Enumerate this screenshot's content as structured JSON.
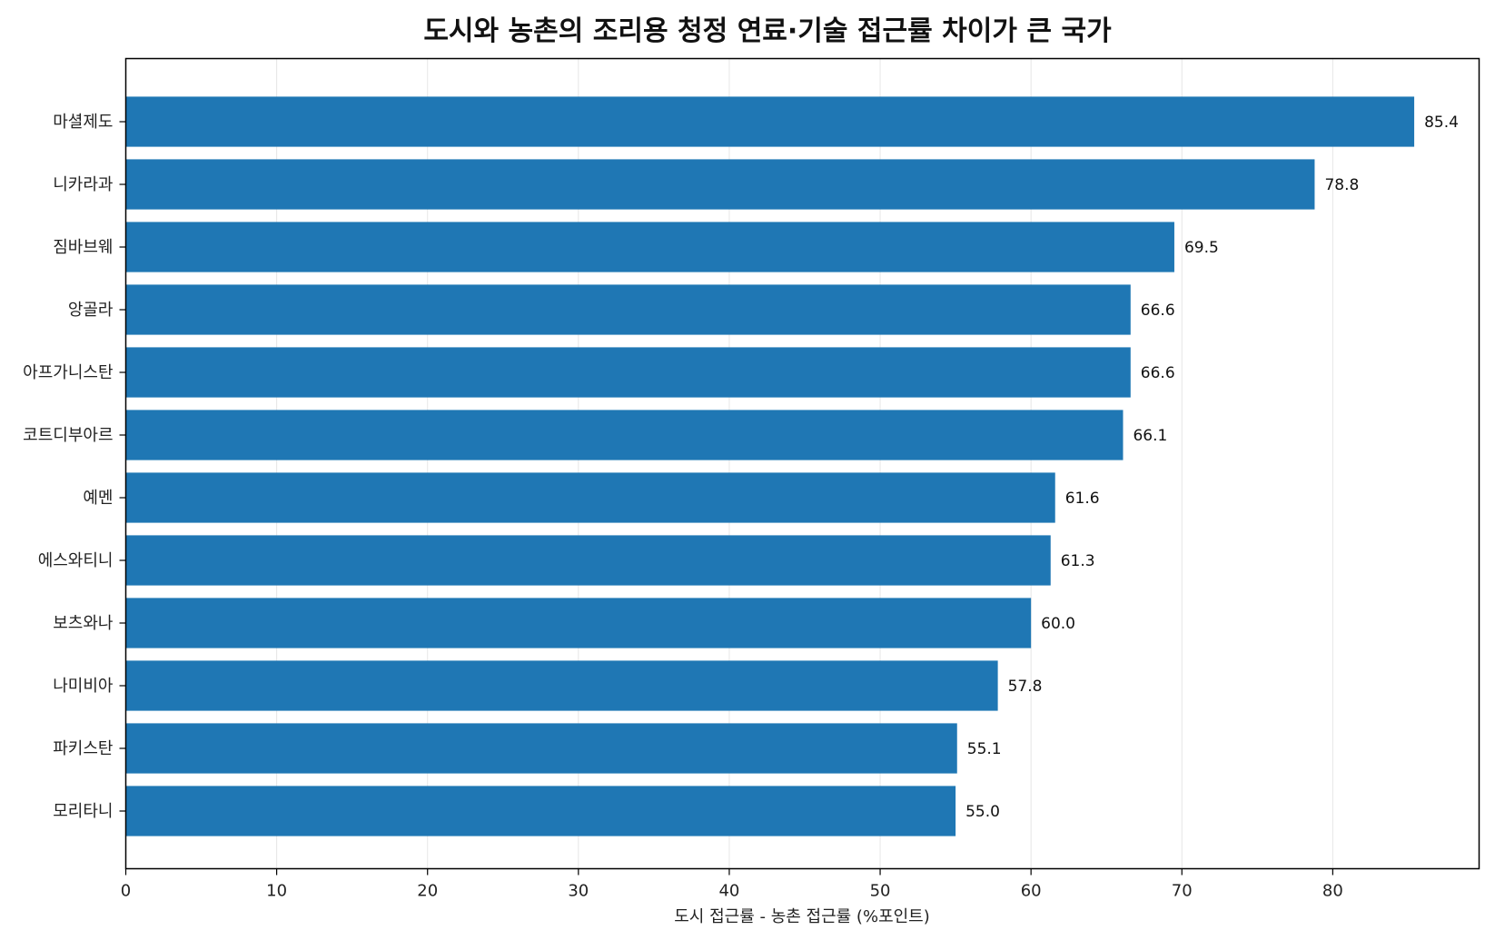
{
  "chart_data": {
    "type": "bar",
    "orientation": "horizontal",
    "title": "도시와 농촌의 조리용 청정 연료·기술 접근률 차이가 큰 국가",
    "xlabel": "도시 접근률 - 농촌 접근률 (%포인트)",
    "ylabel": "",
    "categories": [
      "마셜제도",
      "니카라과",
      "짐바브웨",
      "앙골라",
      "아프가니스탄",
      "코트디부아르",
      "예멘",
      "에스와티니",
      "보츠와나",
      "나미비아",
      "파키스탄",
      "모리타니"
    ],
    "values": [
      85.4,
      78.8,
      69.5,
      66.6,
      66.6,
      66.1,
      61.6,
      61.3,
      60.0,
      57.8,
      55.1,
      55.0
    ],
    "value_labels": [
      "85.4",
      "78.8",
      "69.5",
      "66.6",
      "66.6",
      "66.1",
      "61.6",
      "61.3",
      "60.0",
      "57.8",
      "55.1",
      "55.0"
    ],
    "xlim": [
      0,
      89.7
    ],
    "xticks": [
      "0",
      "10",
      "20",
      "30",
      "40",
      "50",
      "60",
      "70",
      "80"
    ],
    "grid": "vertical",
    "bar_color": "#1f77b4"
  }
}
